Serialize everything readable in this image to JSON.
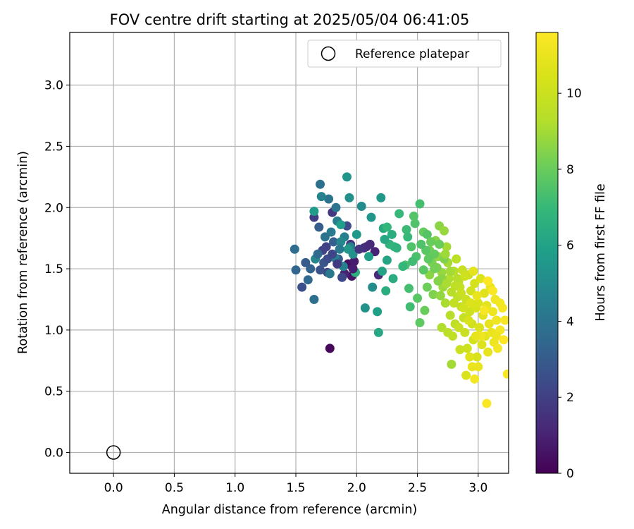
{
  "chart_data": {
    "type": "scatter",
    "title": "FOV centre drift starting at 2025/05/04 06:41:05",
    "xlabel": "Angular distance from reference (arcmin)",
    "ylabel": "Rotation from reference (arcmin)",
    "xlim": [
      -0.36,
      3.25
    ],
    "ylim": [
      -0.17,
      3.43
    ],
    "xticks": [
      0.0,
      0.5,
      1.0,
      1.5,
      2.0,
      2.5,
      3.0
    ],
    "xtick_labels": [
      "0.0",
      "0.5",
      "1.0",
      "1.5",
      "2.0",
      "2.5",
      "3.0"
    ],
    "yticks": [
      0.0,
      0.5,
      1.0,
      1.5,
      2.0,
      2.5,
      3.0
    ],
    "ytick_labels": [
      "0.0",
      "0.5",
      "1.0",
      "1.5",
      "2.0",
      "2.5",
      "3.0"
    ],
    "grid": true,
    "legend": {
      "position": "top-right",
      "entries": [
        "Reference platepar"
      ]
    },
    "colorbar": {
      "label": "Hours from first FF file",
      "colormap": "viridis",
      "range": [
        0,
        11.6
      ],
      "ticks": [
        0,
        2,
        4,
        6,
        8,
        10
      ],
      "tick_labels": [
        "0",
        "2",
        "4",
        "6",
        "8",
        "10"
      ]
    },
    "reference_point": {
      "name": "Reference platepar",
      "x": 0.0,
      "y": 0.0
    },
    "points": [
      [
        1.78,
        0.85,
        0.2
      ],
      [
        1.93,
        1.54,
        0.4
      ],
      [
        1.96,
        1.44,
        0.6
      ],
      [
        1.98,
        1.56,
        0.8
      ],
      [
        1.9,
        1.46,
        1.0
      ],
      [
        2.08,
        1.68,
        1.1
      ],
      [
        2.15,
        1.64,
        1.0
      ],
      [
        2.18,
        1.45,
        1.2
      ],
      [
        1.95,
        1.7,
        1.5
      ],
      [
        2.06,
        1.67,
        1.4
      ],
      [
        1.8,
        1.96,
        1.7
      ],
      [
        1.65,
        1.92,
        1.9
      ],
      [
        1.75,
        1.68,
        2.0
      ],
      [
        1.72,
        1.65,
        2.1
      ],
      [
        1.88,
        1.43,
        2.2
      ],
      [
        1.76,
        1.47,
        2.3
      ],
      [
        1.92,
        1.85,
        2.4
      ],
      [
        1.55,
        1.35,
        2.6
      ],
      [
        1.7,
        1.49,
        2.7
      ],
      [
        1.73,
        1.55,
        2.8
      ],
      [
        1.85,
        1.58,
        3.0
      ],
      [
        1.69,
        1.84,
        3.1
      ],
      [
        1.81,
        1.72,
        3.2
      ],
      [
        1.5,
        1.49,
        3.4
      ],
      [
        1.6,
        1.41,
        3.5
      ],
      [
        1.49,
        1.66,
        3.7
      ],
      [
        1.65,
        1.25,
        3.8
      ],
      [
        1.7,
        2.19,
        3.9
      ],
      [
        1.77,
        2.07,
        4.0
      ],
      [
        1.83,
        2.0,
        4.1
      ],
      [
        1.78,
        1.46,
        4.2
      ],
      [
        1.79,
        1.8,
        4.3
      ],
      [
        1.84,
        1.89,
        4.4
      ],
      [
        1.9,
        1.76,
        4.5
      ],
      [
        1.95,
        1.68,
        4.5
      ],
      [
        1.82,
        1.59,
        4.6
      ],
      [
        1.71,
        2.09,
        4.7
      ],
      [
        1.66,
        1.58,
        4.8
      ],
      [
        1.87,
        1.72,
        4.9
      ],
      [
        2.04,
        2.01,
        5.0
      ],
      [
        2.13,
        1.35,
        5.1
      ],
      [
        1.94,
        2.08,
        5.2
      ],
      [
        2.07,
        1.18,
        5.3
      ],
      [
        1.92,
        2.25,
        5.4
      ],
      [
        2.12,
        1.92,
        5.5
      ],
      [
        2.2,
        2.08,
        5.5
      ],
      [
        1.93,
        1.66,
        5.6
      ],
      [
        1.65,
        1.97,
        5.7
      ],
      [
        1.87,
        1.86,
        5.8
      ],
      [
        2.17,
        1.15,
        5.9
      ],
      [
        2.21,
        1.48,
        6.0
      ],
      [
        2.25,
        1.57,
        6.1
      ],
      [
        2.18,
        0.98,
        6.2
      ],
      [
        2.22,
        1.83,
        6.3
      ],
      [
        2.3,
        1.42,
        6.4
      ],
      [
        2.24,
        1.32,
        6.5
      ],
      [
        1.99,
        1.47,
        6.6
      ],
      [
        2.27,
        1.7,
        6.7
      ],
      [
        2.31,
        1.68,
        6.8
      ],
      [
        2.25,
        1.84,
        6.9
      ],
      [
        2.35,
        1.95,
        7.0
      ],
      [
        2.41,
        1.82,
        7.1
      ],
      [
        2.44,
        1.19,
        7.2
      ],
      [
        2.43,
        1.34,
        7.3
      ],
      [
        2.4,
        1.53,
        7.4
      ],
      [
        2.45,
        1.68,
        7.5
      ],
      [
        2.48,
        1.87,
        7.5
      ],
      [
        2.47,
        1.93,
        7.6
      ],
      [
        2.5,
        1.26,
        7.7
      ],
      [
        2.52,
        1.06,
        7.8
      ],
      [
        2.55,
        1.8,
        7.9
      ],
      [
        2.56,
        1.16,
        8.0
      ],
      [
        2.58,
        1.35,
        8.1
      ],
      [
        2.6,
        1.65,
        8.2
      ],
      [
        2.62,
        1.55,
        8.3
      ],
      [
        2.63,
        1.29,
        8.4
      ],
      [
        2.65,
        1.73,
        8.5
      ],
      [
        2.6,
        1.45,
        8.6
      ],
      [
        2.68,
        1.85,
        8.6
      ],
      [
        2.67,
        1.6,
        8.7
      ],
      [
        2.7,
        1.47,
        8.8
      ],
      [
        2.72,
        1.81,
        8.8
      ],
      [
        2.71,
        1.35,
        8.9
      ],
      [
        2.74,
        1.68,
        9.0
      ],
      [
        2.75,
        1.55,
        9.0
      ],
      [
        2.73,
        1.22,
        9.1
      ],
      [
        2.7,
        1.02,
        9.2
      ],
      [
        2.76,
        1.42,
        9.2
      ],
      [
        2.78,
        1.31,
        9.3
      ],
      [
        2.77,
        1.12,
        9.4
      ],
      [
        2.8,
        1.48,
        9.4
      ],
      [
        2.82,
        1.58,
        9.5
      ],
      [
        2.83,
        1.27,
        9.5
      ],
      [
        2.81,
        1.05,
        9.6
      ],
      [
        2.79,
        0.95,
        9.6
      ],
      [
        2.84,
        1.4,
        9.7
      ],
      [
        2.86,
        1.19,
        9.7
      ],
      [
        2.85,
        1.35,
        9.8
      ],
      [
        2.88,
        1.1,
        9.8
      ],
      [
        2.87,
        1.49,
        9.9
      ],
      [
        2.89,
        0.98,
        9.9
      ],
      [
        2.9,
        1.25,
        10.0
      ],
      [
        2.92,
        1.45,
        10.0
      ],
      [
        2.91,
        0.85,
        10.1
      ],
      [
        2.93,
        1.15,
        10.1
      ],
      [
        2.94,
        1.32,
        10.2
      ],
      [
        2.95,
        1.05,
        10.2
      ],
      [
        2.96,
        0.92,
        10.3
      ],
      [
        2.97,
        1.38,
        10.3
      ],
      [
        2.98,
        1.18,
        10.4
      ],
      [
        2.99,
        0.78,
        10.4
      ],
      [
        3.0,
        1.22,
        10.5
      ],
      [
        3.01,
        1.02,
        10.5
      ],
      [
        3.02,
        1.42,
        10.6
      ],
      [
        3.03,
        0.88,
        10.6
      ],
      [
        3.04,
        1.12,
        10.7
      ],
      [
        3.05,
        1.3,
        10.7
      ],
      [
        3.06,
        0.95,
        10.8
      ],
      [
        3.07,
        1.2,
        10.8
      ],
      [
        3.08,
        0.82,
        10.9
      ],
      [
        3.09,
        1.05,
        10.9
      ],
      [
        3.1,
        1.35,
        11.0
      ],
      [
        3.11,
        0.98,
        11.0
      ],
      [
        3.12,
        1.15,
        11.1
      ],
      [
        3.13,
        0.9,
        11.1
      ],
      [
        3.14,
        1.25,
        11.2
      ],
      [
        3.15,
        1.08,
        11.2
      ],
      [
        3.16,
        0.85,
        11.3
      ],
      [
        3.18,
        1.0,
        11.3
      ],
      [
        3.2,
        1.18,
        11.4
      ],
      [
        3.22,
        1.08,
        11.4
      ],
      [
        3.07,
        0.4,
        11.5
      ],
      [
        3.24,
        0.64,
        11.5
      ],
      [
        2.97,
        0.6,
        11.3
      ],
      [
        2.95,
        0.7,
        11.0
      ],
      [
        2.9,
        0.63,
        10.5
      ],
      [
        2.85,
        0.84,
        10.0
      ],
      [
        2.78,
        0.72,
        9.0
      ],
      [
        2.75,
        0.98,
        9.5
      ],
      [
        2.68,
        1.7,
        8.0
      ],
      [
        2.58,
        1.78,
        7.6
      ],
      [
        2.52,
        2.03,
        7.3
      ],
      [
        2.64,
        1.62,
        7.9
      ],
      [
        2.55,
        1.49,
        7.7
      ],
      [
        2.66,
        1.51,
        8.3
      ],
      [
        2.7,
        1.42,
        8.6
      ],
      [
        2.72,
        1.58,
        8.4
      ],
      [
        2.74,
        1.38,
        9.1
      ],
      [
        2.8,
        1.22,
        9.7
      ],
      [
        2.83,
        1.42,
        9.3
      ],
      [
        2.86,
        1.3,
        9.9
      ],
      [
        2.89,
        1.44,
        10.1
      ],
      [
        2.92,
        1.08,
        10.4
      ],
      [
        2.94,
        1.22,
        10.6
      ],
      [
        2.96,
        1.48,
        10.8
      ],
      [
        2.99,
        1.28,
        11.0
      ],
      [
        3.02,
        0.95,
        11.2
      ],
      [
        3.05,
        1.16,
        11.4
      ],
      [
        3.08,
        1.4,
        11.6
      ],
      [
        3.12,
        1.32,
        11.5
      ],
      [
        3.15,
        0.95,
        11.1
      ],
      [
        3.18,
        1.22,
        11.3
      ],
      [
        3.21,
        0.92,
        11.6
      ],
      [
        3.0,
        0.7,
        11.0
      ],
      [
        2.98,
        0.95,
        10.9
      ],
      [
        2.93,
        0.78,
        10.7
      ],
      [
        2.88,
        1.18,
        10.2
      ],
      [
        2.84,
        1.02,
        9.9
      ],
      [
        2.81,
        1.36,
        9.6
      ],
      [
        2.77,
        1.48,
        9.0
      ],
      [
        2.73,
        1.62,
        8.9
      ],
      [
        2.69,
        1.28,
        8.7
      ],
      [
        2.67,
        1.4,
        8.5
      ],
      [
        2.64,
        1.5,
        8.2
      ],
      [
        2.61,
        1.72,
        8.0
      ],
      [
        2.59,
        1.58,
        7.8
      ],
      [
        2.57,
        1.65,
        7.7
      ],
      [
        2.53,
        1.7,
        7.5
      ],
      [
        2.49,
        1.6,
        7.4
      ],
      [
        2.46,
        1.56,
        7.2
      ],
      [
        2.42,
        1.76,
        7.0
      ],
      [
        2.38,
        1.52,
        6.9
      ],
      [
        2.33,
        1.67,
        6.7
      ],
      [
        2.29,
        1.78,
        6.5
      ],
      [
        2.23,
        1.74,
        6.2
      ],
      [
        2.1,
        1.6,
        5.8
      ],
      [
        2.0,
        1.78,
        5.6
      ],
      [
        1.97,
        1.62,
        5.2
      ],
      [
        1.89,
        1.52,
        4.6
      ],
      [
        1.86,
        1.66,
        4.3
      ],
      [
        1.74,
        1.76,
        4.0
      ],
      [
        1.68,
        1.62,
        3.6
      ],
      [
        1.62,
        1.5,
        3.3
      ],
      [
        1.58,
        1.55,
        3.0
      ],
      [
        1.76,
        1.58,
        2.5
      ],
      [
        1.8,
        1.62,
        2.2
      ],
      [
        1.84,
        1.54,
        1.8
      ],
      [
        2.02,
        1.66,
        1.6
      ],
      [
        2.11,
        1.7,
        1.3
      ],
      [
        1.97,
        1.5,
        0.9
      ]
    ]
  }
}
